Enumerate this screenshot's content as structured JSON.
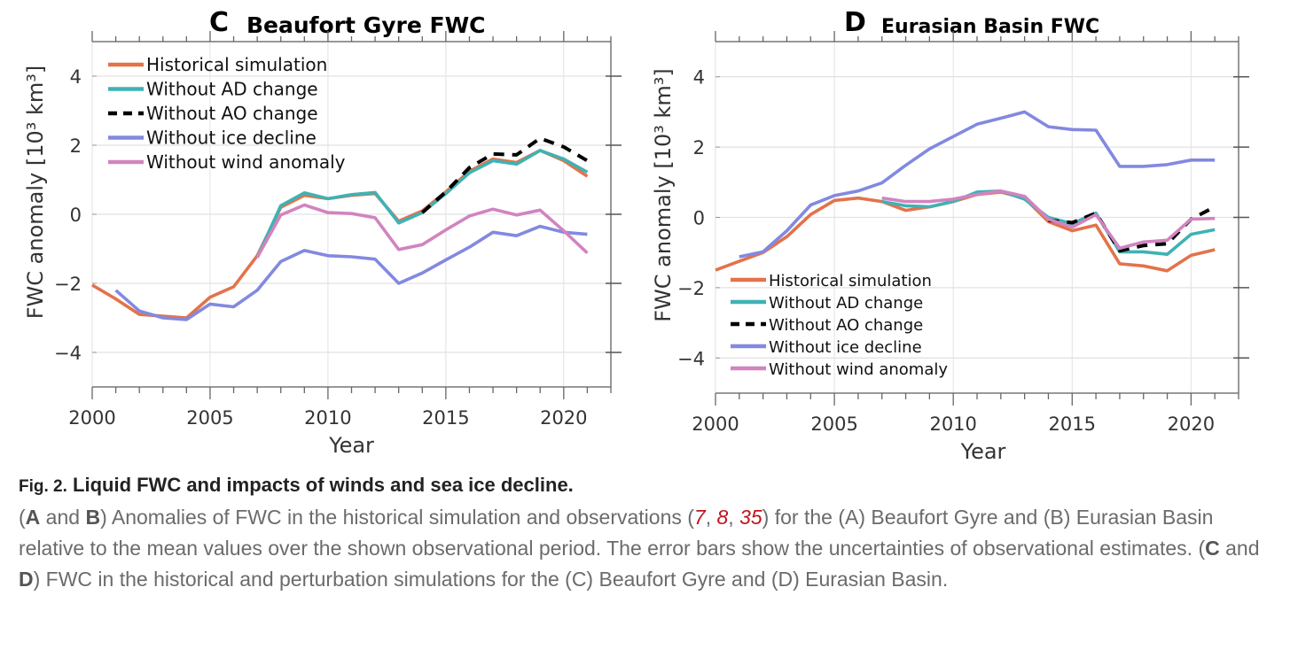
{
  "chart_data": [
    {
      "type": "line",
      "panel_letter": "C",
      "title": "Beaufort Gyre FWC",
      "xlabel": "Year",
      "ylabel": "FWC anomaly [10³ km³]",
      "xlim": [
        2000,
        2022
      ],
      "ylim": [
        -5,
        5
      ],
      "xticks": [
        2000,
        2005,
        2010,
        2015,
        2020
      ],
      "yticks": [
        -4,
        -2,
        0,
        2,
        4
      ],
      "ytick_labels": [
        "−4",
        "−2",
        "0",
        "2",
        "4"
      ],
      "grid": true,
      "legend_position": "top-left",
      "series": [
        {
          "name": "Historical simulation",
          "color": "#e2734b",
          "dash": false,
          "x": [
            2000,
            2001,
            2002,
            2003,
            2004,
            2005,
            2006,
            2007,
            2008,
            2009,
            2010,
            2011,
            2012,
            2013,
            2014,
            2015,
            2016,
            2017,
            2018,
            2019,
            2020,
            2021
          ],
          "y": [
            -2.05,
            -2.45,
            -2.9,
            -2.95,
            -3.0,
            -2.4,
            -2.1,
            -1.2,
            0.2,
            0.55,
            0.45,
            0.55,
            0.6,
            -0.2,
            0.1,
            0.65,
            1.25,
            1.6,
            1.5,
            1.85,
            1.55,
            1.1
          ]
        },
        {
          "name": "Without AD change",
          "color": "#3fb2b4",
          "dash": false,
          "x": [
            2007,
            2008,
            2009,
            2010,
            2011,
            2012,
            2013,
            2014,
            2015,
            2016,
            2017,
            2018,
            2019,
            2020,
            2021
          ],
          "y": [
            -1.25,
            0.25,
            0.62,
            0.45,
            0.57,
            0.63,
            -0.25,
            0.05,
            0.6,
            1.2,
            1.55,
            1.45,
            1.85,
            1.6,
            1.22
          ]
        },
        {
          "name": "Without AO change",
          "color": "#000000",
          "dash": true,
          "x": [
            2014,
            2015,
            2016,
            2017,
            2018,
            2019,
            2020,
            2021
          ],
          "y": [
            0.05,
            0.65,
            1.35,
            1.75,
            1.72,
            2.2,
            1.95,
            1.55
          ]
        },
        {
          "name": "Without ice decline",
          "color": "#8289e0",
          "dash": false,
          "x": [
            2001,
            2002,
            2003,
            2004,
            2005,
            2006,
            2007,
            2008,
            2009,
            2010,
            2011,
            2012,
            2013,
            2014,
            2015,
            2016,
            2017,
            2018,
            2019,
            2020,
            2021
          ],
          "y": [
            -2.2,
            -2.8,
            -3.0,
            -3.05,
            -2.6,
            -2.68,
            -2.2,
            -1.37,
            -1.05,
            -1.2,
            -1.23,
            -1.3,
            -2.0,
            -1.7,
            -1.32,
            -0.95,
            -0.52,
            -0.62,
            -0.35,
            -0.52,
            -0.58
          ]
        },
        {
          "name": "Without wind anomaly",
          "color": "#d184c0",
          "dash": false,
          "x": [
            2007,
            2008,
            2009,
            2010,
            2011,
            2012,
            2013,
            2014,
            2015,
            2016,
            2017,
            2018,
            2019,
            2020,
            2021
          ],
          "y": [
            -1.25,
            -0.02,
            0.27,
            0.05,
            0.02,
            -0.1,
            -1.02,
            -0.88,
            -0.45,
            -0.05,
            0.15,
            -0.02,
            0.12,
            -0.48,
            -1.12
          ]
        }
      ]
    },
    {
      "type": "line",
      "panel_letter": "D",
      "title": "Eurasian Basin FWC",
      "xlabel": "Year",
      "ylabel": "FWC anomaly [10³ km³]",
      "xlim": [
        2000,
        2022
      ],
      "ylim": [
        -5,
        5
      ],
      "xticks": [
        2000,
        2005,
        2010,
        2015,
        2020
      ],
      "yticks": [
        -4,
        -2,
        0,
        2,
        4
      ],
      "ytick_labels": [
        "−4",
        "−2",
        "0",
        "2",
        "4"
      ],
      "grid": true,
      "legend_position": "bottom-left",
      "series": [
        {
          "name": "Historical simulation",
          "color": "#e2734b",
          "dash": false,
          "x": [
            2000,
            2001,
            2002,
            2003,
            2004,
            2005,
            2006,
            2007,
            2008,
            2009,
            2010,
            2011,
            2012,
            2013,
            2014,
            2015,
            2016,
            2017,
            2018,
            2019,
            2020,
            2021
          ],
          "y": [
            -1.5,
            -1.25,
            -1.0,
            -0.55,
            0.08,
            0.48,
            0.55,
            0.45,
            0.2,
            0.3,
            0.45,
            0.65,
            0.72,
            0.55,
            -0.12,
            -0.38,
            -0.22,
            -1.32,
            -1.38,
            -1.52,
            -1.08,
            -0.92
          ]
        },
        {
          "name": "Without AD change",
          "color": "#3fb2b4",
          "dash": false,
          "x": [
            2007,
            2008,
            2009,
            2010,
            2011,
            2012,
            2013,
            2014,
            2015,
            2016,
            2017,
            2018,
            2019,
            2020,
            2021
          ],
          "y": [
            0.45,
            0.33,
            0.3,
            0.45,
            0.72,
            0.75,
            0.52,
            0.0,
            -0.18,
            0.12,
            -0.98,
            -0.98,
            -1.05,
            -0.48,
            -0.35
          ]
        },
        {
          "name": "Without AO change",
          "color": "#000000",
          "dash": true,
          "x": [
            2014,
            2015,
            2016,
            2017,
            2018,
            2019,
            2020,
            2021
          ],
          "y": [
            -0.08,
            -0.15,
            0.12,
            -0.95,
            -0.8,
            -0.75,
            -0.05,
            0.3
          ]
        },
        {
          "name": "Without ice decline",
          "color": "#8289e0",
          "dash": false,
          "x": [
            2001,
            2002,
            2003,
            2004,
            2005,
            2006,
            2007,
            2008,
            2009,
            2010,
            2011,
            2012,
            2013,
            2014,
            2015,
            2016,
            2017,
            2018,
            2019,
            2020,
            2021
          ],
          "y": [
            -1.12,
            -0.98,
            -0.38,
            0.35,
            0.62,
            0.75,
            0.98,
            1.48,
            1.95,
            2.3,
            2.65,
            2.82,
            3.0,
            2.58,
            2.5,
            2.48,
            1.45,
            1.45,
            1.5,
            1.63,
            1.63
          ]
        },
        {
          "name": "Without wind anomaly",
          "color": "#d184c0",
          "dash": false,
          "x": [
            2007,
            2008,
            2009,
            2010,
            2011,
            2012,
            2013,
            2014,
            2015,
            2016,
            2017,
            2018,
            2019,
            2020,
            2021
          ],
          "y": [
            0.55,
            0.45,
            0.45,
            0.52,
            0.65,
            0.75,
            0.6,
            -0.05,
            -0.28,
            0.08,
            -0.88,
            -0.7,
            -0.65,
            -0.05,
            -0.03
          ]
        }
      ]
    }
  ],
  "caption": {
    "fig_label": "Fig. 2.",
    "title": "Liquid FWC and impacts of winds and sea ice decline.",
    "body": [
      {
        "t": "("
      },
      {
        "t": "A",
        "b": true
      },
      {
        "t": " and "
      },
      {
        "t": "B",
        "b": true
      },
      {
        "t": ") Anomalies of FWC in the historical simulation and observations ("
      },
      {
        "t": "7",
        "ref": true
      },
      {
        "t": ", "
      },
      {
        "t": "8",
        "ref": true
      },
      {
        "t": ", "
      },
      {
        "t": "35",
        "ref": true
      },
      {
        "t": ") for the (A) Beaufort Gyre and (B) Eurasian Basin relative to the mean values over the shown observational period. The error bars show the uncertainties of observational estimates. ("
      },
      {
        "t": "C",
        "b": true
      },
      {
        "t": " and "
      },
      {
        "t": "D",
        "b": true
      },
      {
        "t": ") FWC in the historical and perturbation simulations for the (C) Beaufort Gyre and (D) Eurasian Basin."
      }
    ]
  }
}
